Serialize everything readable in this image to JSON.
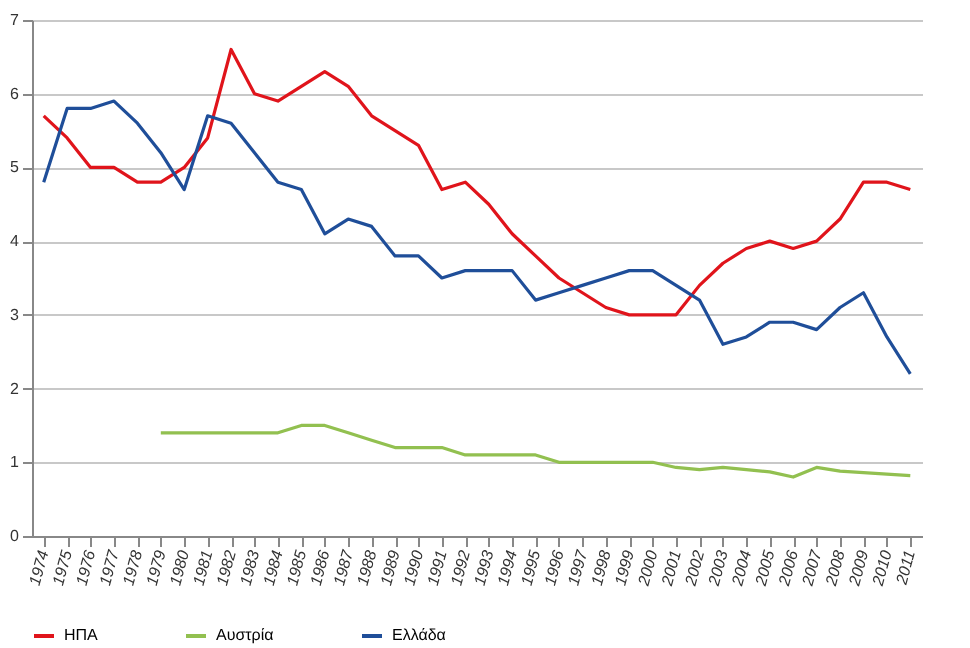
{
  "chart_data": {
    "type": "line",
    "categories": [
      "1974",
      "1975",
      "1976",
      "1977",
      "1978",
      "1979",
      "1980",
      "1981",
      "1982",
      "1983",
      "1984",
      "1985",
      "1986",
      "1987",
      "1988",
      "1989",
      "1990",
      "1991",
      "1992",
      "1993",
      "1994",
      "1995",
      "1996",
      "1997",
      "1998",
      "1999",
      "2000",
      "2001",
      "2002",
      "2003",
      "2004",
      "2005",
      "2006",
      "2007",
      "2008",
      "2009",
      "2010",
      "2011"
    ],
    "series": [
      {
        "name": "ΗΠΑ",
        "color": "#e0141b",
        "values": [
          5.7,
          5.4,
          5.0,
          5.0,
          4.8,
          4.8,
          5.0,
          5.4,
          6.6,
          6.0,
          5.9,
          6.1,
          6.3,
          6.1,
          5.7,
          5.5,
          5.3,
          4.7,
          4.8,
          4.5,
          4.1,
          3.8,
          3.5,
          3.3,
          3.1,
          3.0,
          3.0,
          3.0,
          3.4,
          3.7,
          3.9,
          4.0,
          3.9,
          4.0,
          4.3,
          4.8,
          4.8,
          4.7
        ]
      },
      {
        "name": "Αυστρία",
        "color": "#92c050",
        "values": [
          null,
          null,
          null,
          null,
          null,
          1.4,
          1.4,
          1.4,
          1.4,
          1.4,
          1.4,
          1.5,
          1.5,
          1.4,
          1.3,
          1.2,
          1.2,
          1.2,
          1.1,
          1.1,
          1.1,
          1.1,
          1.0,
          1.0,
          1.0,
          1.0,
          1.0,
          0.93,
          0.9,
          0.93,
          0.9,
          0.87,
          0.8,
          0.93,
          0.88,
          0.86,
          0.84,
          0.82
        ]
      },
      {
        "name": "Ελλάδα",
        "color": "#1f4e99",
        "values": [
          4.8,
          5.8,
          5.8,
          5.9,
          5.6,
          5.2,
          4.7,
          5.7,
          5.6,
          5.2,
          4.8,
          4.7,
          4.1,
          4.3,
          4.2,
          3.8,
          3.8,
          3.5,
          3.6,
          3.6,
          3.6,
          3.2,
          3.3,
          3.4,
          3.5,
          3.6,
          3.6,
          3.4,
          3.2,
          2.6,
          2.7,
          2.9,
          2.9,
          2.8,
          3.1,
          3.3,
          2.7,
          2.2
        ]
      }
    ],
    "ylim": [
      0,
      7
    ],
    "yticks": [
      0,
      1,
      2,
      3,
      4,
      5,
      6,
      7
    ],
    "grid": "y",
    "legend": "bottom"
  }
}
